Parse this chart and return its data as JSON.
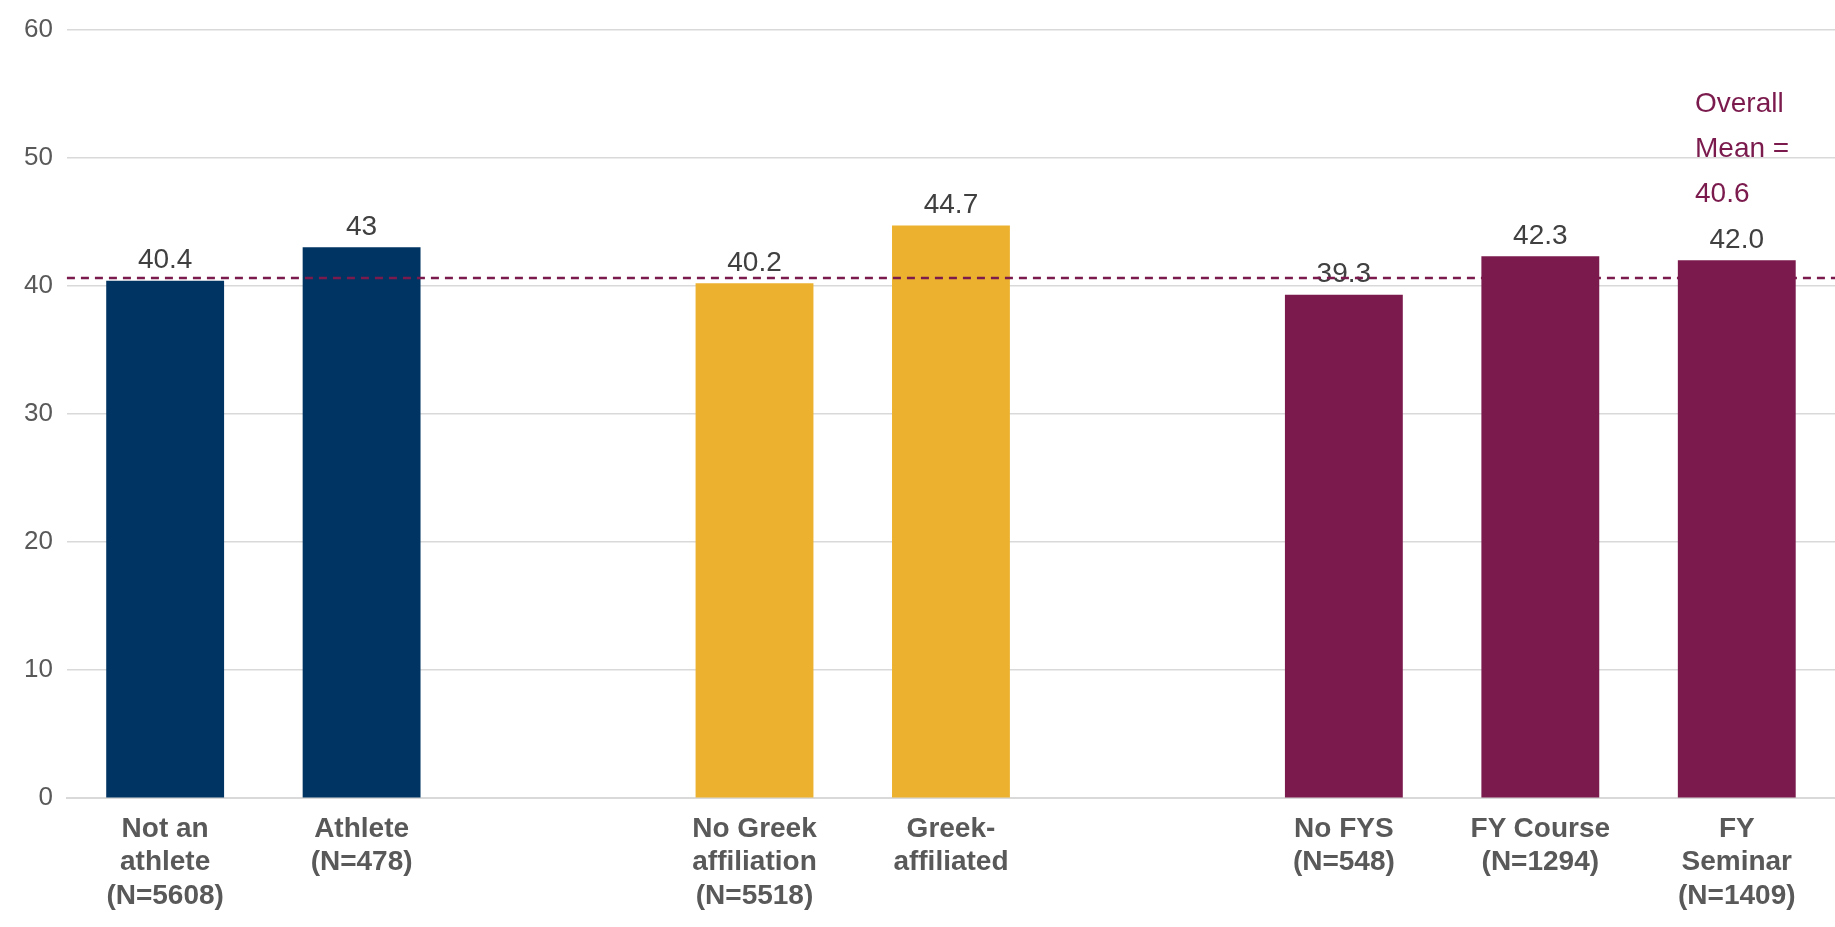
{
  "chart_data": {
    "type": "bar",
    "categories": [
      "Not an athlete (N=5608)",
      "Athlete (N=478)",
      null,
      "No Greek affiliation (N=5518)",
      "Greek-affiliated",
      null,
      "No FYS (N=548)",
      "FY Course (N=1294)",
      "FY Seminar (N=1409)"
    ],
    "values": [
      40.4,
      43,
      null,
      40.2,
      44.7,
      null,
      39.3,
      42.3,
      42.0
    ],
    "colors": [
      "#003462",
      "#003462",
      null,
      "#ecb22f",
      "#ecb22f",
      null,
      "#7b1b4d",
      "#7b1b4d",
      "#7b1b4d"
    ],
    "value_labels": [
      "40.4",
      "43",
      null,
      "40.2",
      "44.7",
      null,
      "39.3",
      "42.3",
      "42.0"
    ],
    "ylim": [
      0,
      60
    ],
    "yticks": [
      0,
      10,
      20,
      30,
      40,
      50,
      60
    ],
    "grid": "y",
    "legend": false,
    "ref_lines": [
      {
        "axis": "y",
        "value": 40.6,
        "label": "Overall Mean = 40.6",
        "color": "#7b1b4d",
        "line_style": "dashed"
      }
    ]
  }
}
